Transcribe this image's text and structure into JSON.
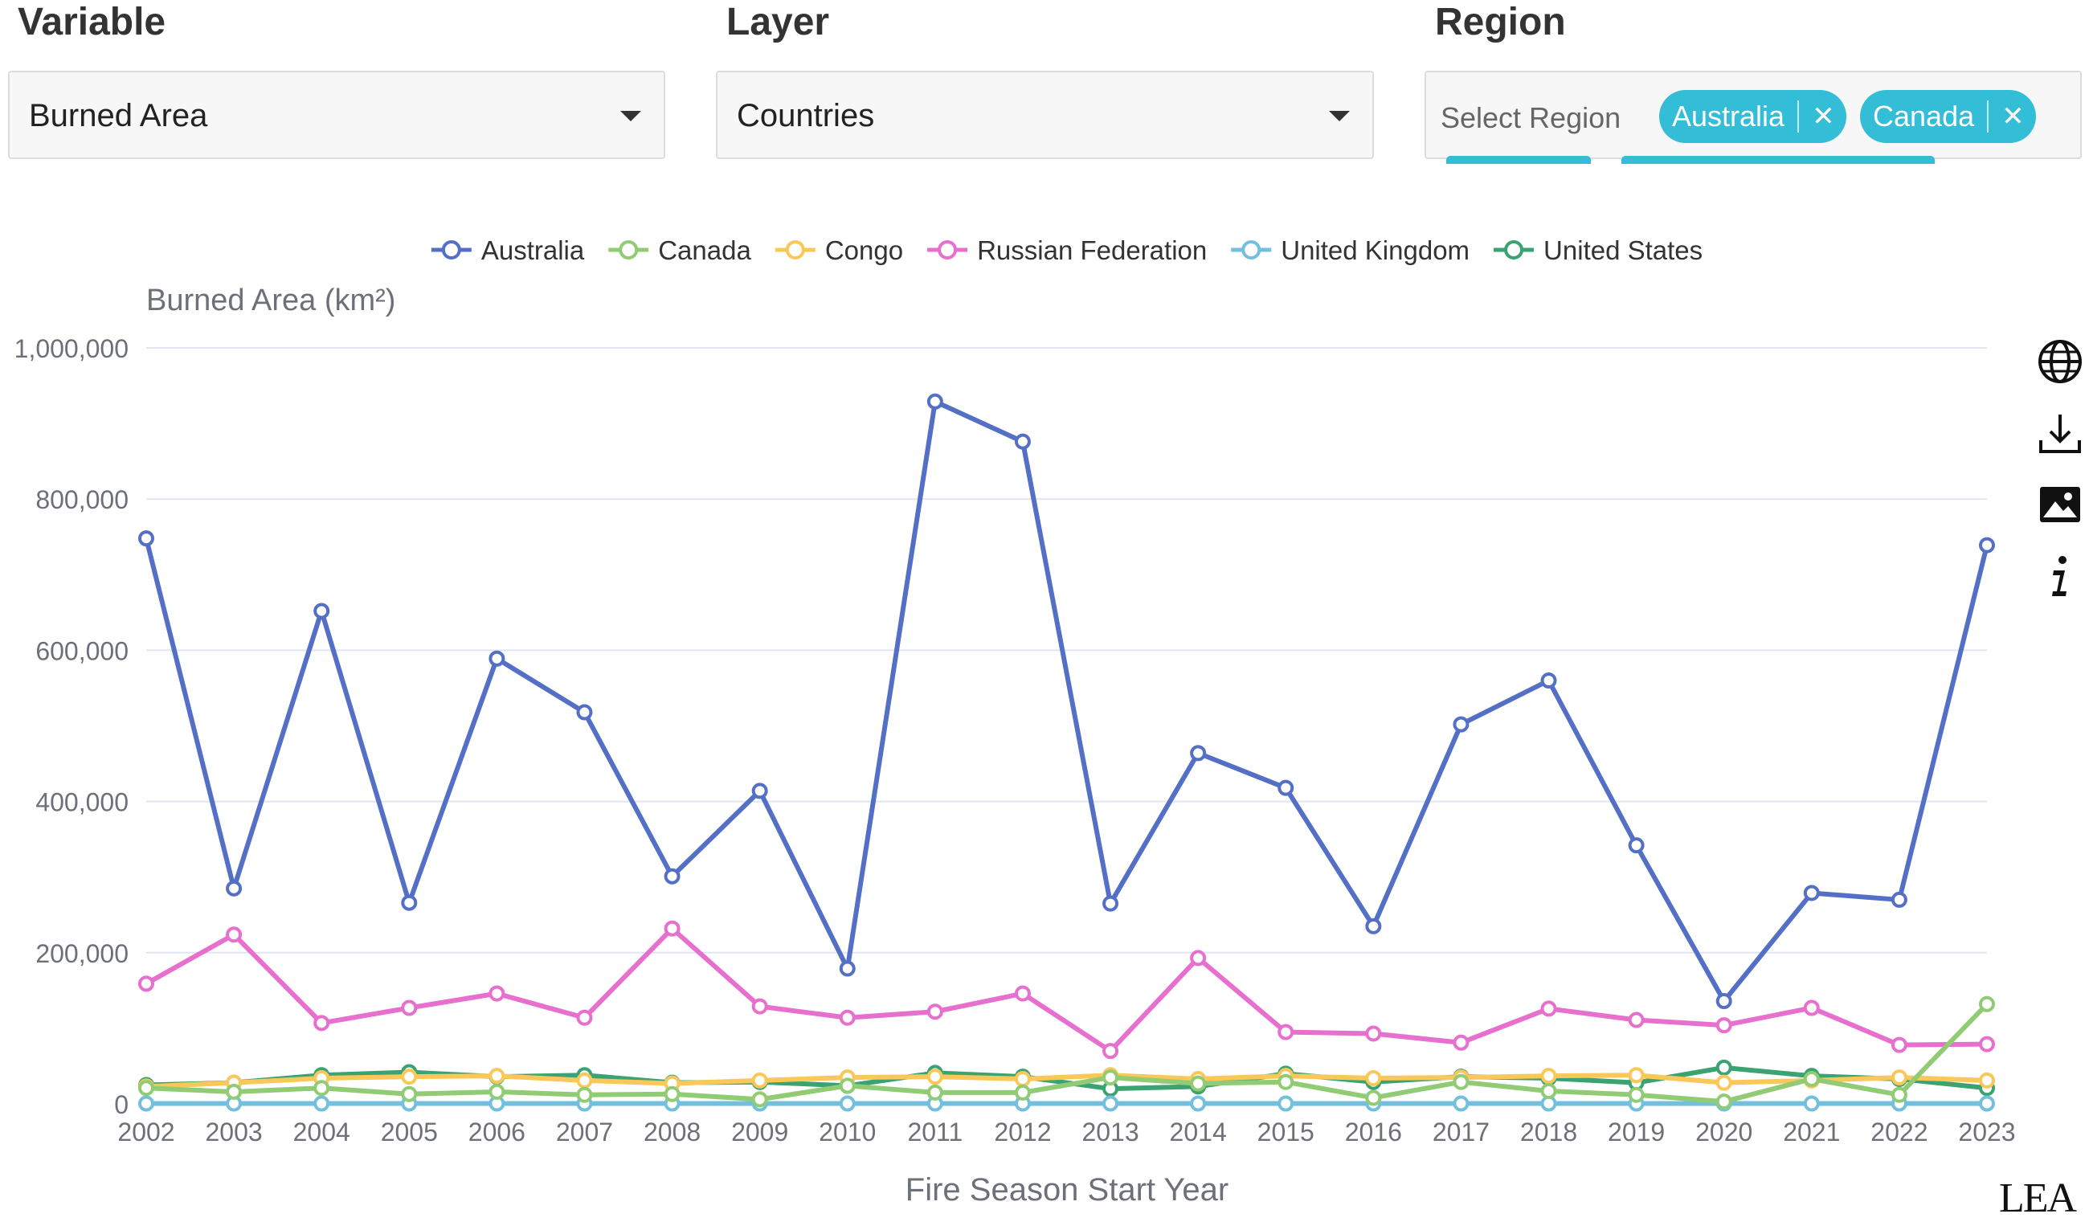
{
  "controls": {
    "variable": {
      "label": "Variable",
      "value": "Burned Area"
    },
    "layer": {
      "label": "Layer",
      "value": "Countries"
    },
    "region": {
      "label": "Region",
      "placeholder": "Select Region",
      "chips": [
        {
          "label": "Australia"
        },
        {
          "label": "Canada"
        }
      ]
    }
  },
  "toolbar": {
    "icons": [
      "globe-icon",
      "download-icon",
      "image-icon",
      "info-icon"
    ]
  },
  "logo_text": "LEA",
  "chart_data": {
    "type": "line",
    "title": "",
    "ylabel": "Burned Area (km²)",
    "xlabel": "Fire Season Start Year",
    "ylim": [
      0,
      1000000
    ],
    "yticks": [
      0,
      200000,
      400000,
      600000,
      800000,
      1000000
    ],
    "ytick_labels": [
      "0",
      "200,000",
      "400,000",
      "600,000",
      "800,000",
      "1,000,000"
    ],
    "legend_position": "top",
    "grid": true,
    "categories": [
      "2002",
      "2003",
      "2004",
      "2005",
      "2006",
      "2007",
      "2008",
      "2009",
      "2010",
      "2011",
      "2012",
      "2013",
      "2014",
      "2015",
      "2016",
      "2017",
      "2018",
      "2019",
      "2020",
      "2021",
      "2022",
      "2023"
    ],
    "series": [
      {
        "name": "Australia",
        "color": "#5470c6",
        "values": [
          748000,
          285000,
          652000,
          266000,
          589000,
          518000,
          301000,
          414000,
          179000,
          929000,
          876000,
          265000,
          464000,
          418000,
          235000,
          502000,
          560000,
          342000,
          136000,
          279000,
          270000,
          739000
        ]
      },
      {
        "name": "Canada",
        "color": "#91cc75",
        "values": [
          21000,
          16000,
          21000,
          13000,
          16000,
          12000,
          13000,
          6000,
          24000,
          15000,
          15000,
          35000,
          27000,
          29000,
          8000,
          29000,
          17000,
          12000,
          3000,
          33000,
          12000,
          132000
        ]
      },
      {
        "name": "Congo",
        "color": "#fac858",
        "values": [
          23000,
          28000,
          34000,
          36000,
          37000,
          31000,
          27000,
          31000,
          35000,
          36000,
          33000,
          38000,
          33000,
          37000,
          34000,
          35000,
          37000,
          38000,
          28000,
          31000,
          35000,
          31000
        ]
      },
      {
        "name": "Russian Federation",
        "color": "#e76fce",
        "values": [
          159000,
          224000,
          107000,
          127000,
          146000,
          114000,
          232000,
          129000,
          114000,
          122000,
          146000,
          70000,
          193000,
          95000,
          93000,
          81000,
          126000,
          111000,
          104000,
          127000,
          78000,
          79000
        ]
      },
      {
        "name": "United Kingdom",
        "color": "#73c0de",
        "values": [
          500,
          500,
          500,
          500,
          500,
          500,
          500,
          500,
          500,
          500,
          500,
          500,
          500,
          500,
          500,
          500,
          500,
          500,
          500,
          500,
          500,
          500
        ]
      },
      {
        "name": "United States",
        "color": "#3ba272",
        "values": [
          25000,
          28000,
          38000,
          42000,
          36000,
          38000,
          28000,
          29000,
          24000,
          41000,
          36000,
          20000,
          23000,
          40000,
          29000,
          36000,
          34000,
          28000,
          48000,
          37000,
          33000,
          21000
        ]
      }
    ]
  }
}
